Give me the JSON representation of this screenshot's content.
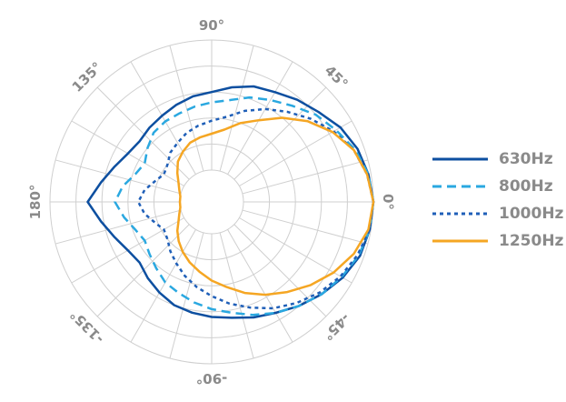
{
  "chart_data": {
    "type": "polar-line",
    "title": "",
    "angular_ticks": [
      {
        "angle": 0,
        "label": "0°"
      },
      {
        "angle": 45,
        "label": "45°"
      },
      {
        "angle": 90,
        "label": "90°"
      },
      {
        "angle": 135,
        "label": "135°"
      },
      {
        "angle": 180,
        "label": "180°"
      },
      {
        "angle": -135,
        "label": "-135°"
      },
      {
        "angle": -90,
        "label": "-90°"
      },
      {
        "angle": -45,
        "label": "-45°"
      }
    ],
    "angular_grid_step_deg": 15,
    "radial_grid_rings": 5,
    "r_range": [
      0,
      1
    ],
    "grid": true,
    "legend_position": "right",
    "theta_deg": [
      0,
      10,
      20,
      30,
      40,
      50,
      60,
      70,
      80,
      90,
      100,
      110,
      120,
      130,
      140,
      150,
      160,
      170,
      180,
      190,
      200,
      210,
      220,
      230,
      240,
      250,
      260,
      270,
      280,
      290,
      300,
      310,
      320,
      330,
      340,
      350
    ],
    "series": [
      {
        "name": "630Hz",
        "color": "#0d4fa0",
        "dash": "solid",
        "values": [
          1.0,
          0.98,
          0.95,
          0.9,
          0.83,
          0.78,
          0.73,
          0.7,
          0.65,
          0.6,
          0.58,
          0.55,
          0.52,
          0.5,
          0.48,
          0.5,
          0.55,
          0.62,
          0.71,
          0.62,
          0.55,
          0.5,
          0.48,
          0.52,
          0.56,
          0.6,
          0.62,
          0.64,
          0.66,
          0.7,
          0.74,
          0.8,
          0.86,
          0.92,
          0.97,
          0.99
        ]
      },
      {
        "name": "800Hz",
        "color": "#2aa8e0",
        "dash": "long-dash",
        "values": [
          1.0,
          0.98,
          0.93,
          0.86,
          0.8,
          0.72,
          0.66,
          0.61,
          0.55,
          0.52,
          0.5,
          0.48,
          0.47,
          0.45,
          0.4,
          0.35,
          0.38,
          0.45,
          0.5,
          0.44,
          0.38,
          0.35,
          0.38,
          0.42,
          0.47,
          0.5,
          0.54,
          0.58,
          0.62,
          0.68,
          0.74,
          0.8,
          0.86,
          0.91,
          0.96,
          0.99
        ]
      },
      {
        "name": "1000Hz",
        "color": "#1f5fb8",
        "dash": "dotted",
        "values": [
          1.0,
          0.97,
          0.92,
          0.84,
          0.75,
          0.66,
          0.58,
          0.5,
          0.42,
          0.38,
          0.35,
          0.32,
          0.28,
          0.25,
          0.2,
          0.18,
          0.22,
          0.28,
          0.32,
          0.28,
          0.22,
          0.18,
          0.2,
          0.25,
          0.3,
          0.36,
          0.42,
          0.48,
          0.55,
          0.62,
          0.7,
          0.77,
          0.84,
          0.9,
          0.95,
          0.99
        ]
      },
      {
        "name": "1250Hz",
        "color": "#f5a623",
        "dash": "solid",
        "values": [
          1.0,
          0.97,
          0.92,
          0.83,
          0.72,
          0.6,
          0.48,
          0.4,
          0.32,
          0.28,
          0.26,
          0.24,
          0.2,
          0.16,
          0.1,
          0.05,
          0.02,
          0.0,
          0.0,
          0.0,
          0.02,
          0.05,
          0.1,
          0.15,
          0.2,
          0.25,
          0.3,
          0.36,
          0.42,
          0.5,
          0.58,
          0.66,
          0.75,
          0.84,
          0.92,
          0.98
        ]
      }
    ]
  }
}
